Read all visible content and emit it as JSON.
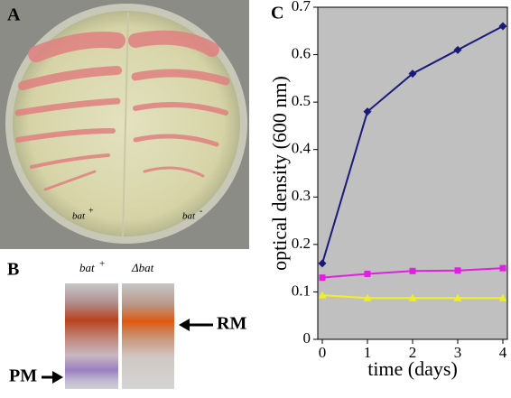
{
  "panel_a": {
    "label": "A",
    "strain_labels": [
      {
        "text": "bat",
        "sign": "+"
      },
      {
        "text": "bat",
        "sign": "-"
      }
    ]
  },
  "panel_b": {
    "label": "B",
    "lane_labels": [
      {
        "text": "bat",
        "sign": "+"
      },
      {
        "text": "Δbat"
      }
    ],
    "band_labels": [
      "RM",
      "PM"
    ]
  },
  "chart_data": {
    "type": "line",
    "panel_label": "C",
    "x_label": "time (days)",
    "y_label": "optical density (600 nm)",
    "x": [
      0,
      1,
      2,
      3,
      4
    ],
    "series": [
      {
        "color": "#1a1a7a",
        "marker": "diamond",
        "values": [
          0.16,
          0.48,
          0.56,
          0.61,
          0.66
        ]
      },
      {
        "color": "#e020e0",
        "marker": "square",
        "values": [
          0.13,
          0.138,
          0.144,
          0.145,
          0.15
        ]
      },
      {
        "color": "#f0f020",
        "marker": "triangle",
        "values": [
          0.093,
          0.087,
          0.087,
          0.087,
          0.087
        ]
      }
    ],
    "xlim": [
      -0.1,
      4.1
    ],
    "ylim": [
      0,
      0.7
    ],
    "xticks": [
      0,
      1,
      2,
      3,
      4
    ],
    "yticks": [
      0,
      0.1,
      0.2,
      0.3,
      0.4,
      0.5,
      0.6,
      0.7
    ],
    "background": "#c0c0c0"
  }
}
